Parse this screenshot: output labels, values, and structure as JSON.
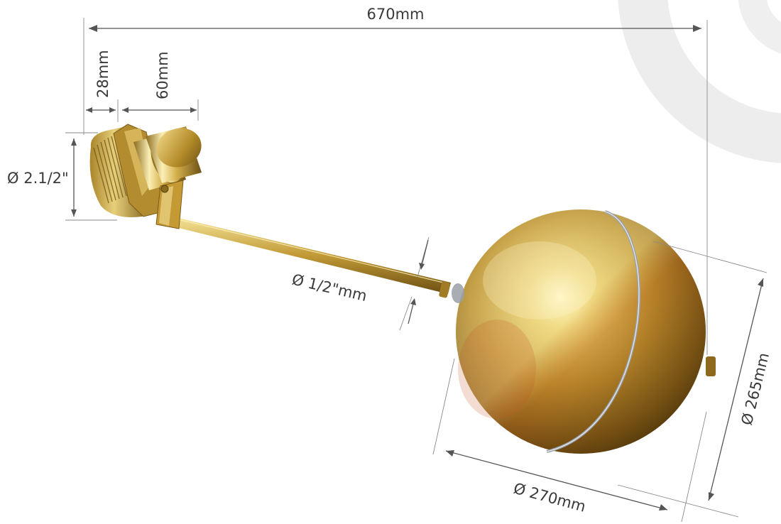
{
  "dimensions": {
    "overall_length": "670mm",
    "thread_length": "28mm",
    "valve_body_length": "60mm",
    "thread_diameter": "Ø 2.1/2\"",
    "rod_diameter": "Ø 1/2\"mm",
    "ball_width": "Ø 270mm",
    "ball_height": "Ø 265mm"
  },
  "colors": {
    "brass_light": "#f3e08a",
    "brass_mid": "#c9a43a",
    "brass_dark": "#6e5413",
    "weld_seam": "#9aa0a8",
    "watermark": "#ececec",
    "annotation": "#3a3a3a"
  }
}
